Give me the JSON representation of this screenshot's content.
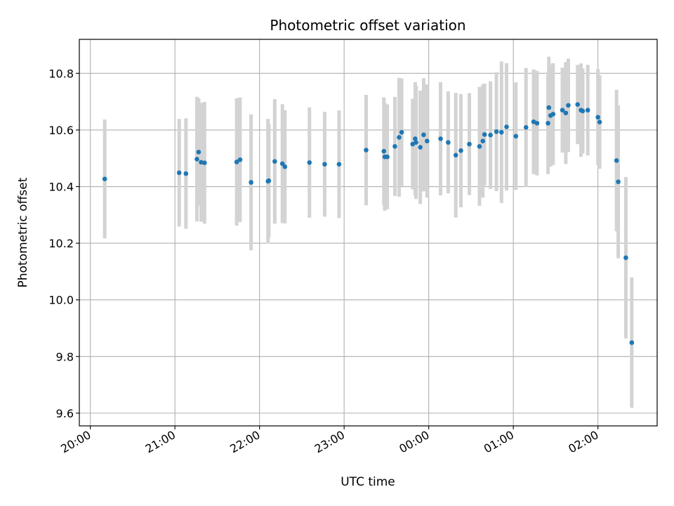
{
  "chart_data": {
    "type": "scatter",
    "title": "Photometric offset variation",
    "xlabel": "UTC time",
    "ylabel": "Photometric offset",
    "x_ticks": [
      "20:00",
      "21:00",
      "22:00",
      "23:00",
      "00:00",
      "01:00",
      "02:00"
    ],
    "y_ticks": [
      "9.6",
      "9.8",
      "10.0",
      "10.2",
      "10.4",
      "10.6",
      "10.8"
    ],
    "x_tick_hours": [
      20,
      21,
      22,
      23,
      24,
      25,
      26
    ],
    "y_tick_values": [
      9.6,
      9.8,
      10.0,
      10.2,
      10.4,
      10.6,
      10.8
    ],
    "xlim_hours": [
      19.87,
      26.7
    ],
    "ylim": [
      9.555,
      10.92
    ],
    "grid": true,
    "colors": {
      "point": "#1f77b4",
      "errorbar": "#d3d3d3",
      "grid": "#b0b0b0"
    },
    "series": [
      {
        "x_hours": [
          20.17,
          21.05,
          21.13,
          21.26,
          21.28,
          21.31,
          21.35,
          21.73,
          21.77,
          21.9,
          22.1,
          22.11,
          22.18,
          22.27,
          22.3,
          22.59,
          22.77,
          22.94,
          23.26,
          23.47,
          23.48,
          23.51,
          23.6,
          23.65,
          23.68,
          23.81,
          23.84,
          23.85,
          23.9,
          23.94,
          23.98,
          24.14,
          24.23,
          24.32,
          24.38,
          24.48,
          24.6,
          24.64,
          24.66,
          24.73,
          24.8,
          24.86,
          24.92,
          25.03,
          25.15,
          25.24,
          25.28,
          25.41,
          25.42,
          25.44,
          25.47,
          25.58,
          25.62,
          25.65,
          25.76,
          25.8,
          25.82,
          25.88,
          26.0,
          26.02,
          26.22,
          26.24,
          26.33,
          26.4
        ],
        "y": [
          10.427,
          10.449,
          10.446,
          10.497,
          10.522,
          10.486,
          10.484,
          10.487,
          10.495,
          10.415,
          10.419,
          10.421,
          10.489,
          10.481,
          10.47,
          10.485,
          10.479,
          10.479,
          10.529,
          10.525,
          10.505,
          10.505,
          10.542,
          10.574,
          10.592,
          10.55,
          10.569,
          10.556,
          10.539,
          10.583,
          10.561,
          10.569,
          10.556,
          10.511,
          10.527,
          10.55,
          10.542,
          10.561,
          10.584,
          10.582,
          10.594,
          10.592,
          10.611,
          10.578,
          10.609,
          10.629,
          10.624,
          10.624,
          10.679,
          10.651,
          10.656,
          10.67,
          10.66,
          10.687,
          10.69,
          10.67,
          10.667,
          10.67,
          10.645,
          10.628,
          10.492,
          10.417,
          10.149,
          9.849
        ],
        "yerr": [
          0.21,
          0.19,
          0.195,
          0.22,
          0.19,
          0.21,
          0.215,
          0.225,
          0.22,
          0.24,
          0.22,
          0.2,
          0.22,
          0.21,
          0.2,
          0.195,
          0.185,
          0.19,
          0.195,
          0.19,
          0.19,
          0.185,
          0.175,
          0.21,
          0.19,
          0.16,
          0.2,
          0.2,
          0.2,
          0.2,
          0.2,
          0.2,
          0.18,
          0.22,
          0.2,
          0.18,
          0.21,
          0.2,
          0.18,
          0.19,
          0.21,
          0.25,
          0.225,
          0.19,
          0.21,
          0.185,
          0.185,
          0.18,
          0.18,
          0.18,
          0.18,
          0.15,
          0.18,
          0.165,
          0.14,
          0.165,
          0.15,
          0.16,
          0.17,
          0.165,
          0.25,
          0.27,
          0.285,
          0.23
        ]
      }
    ]
  }
}
